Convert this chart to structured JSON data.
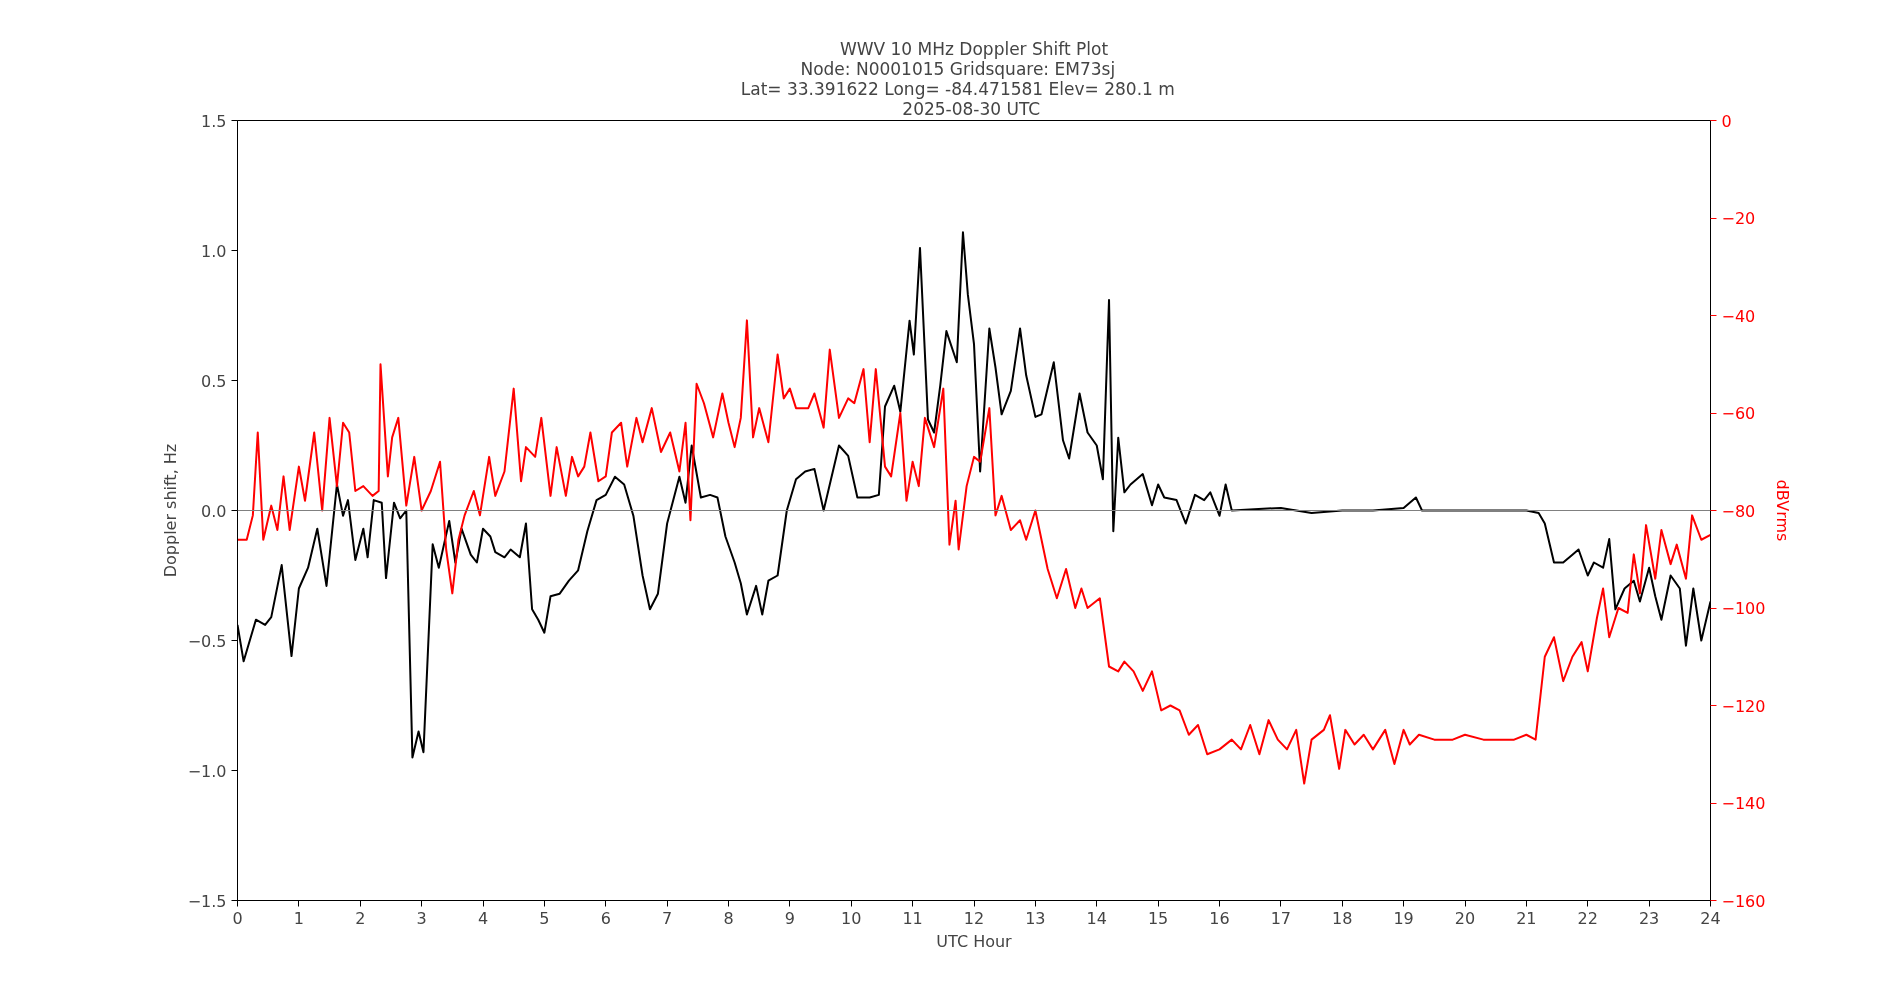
{
  "chart_data": {
    "type": "line",
    "title": "WWV 10 MHz Doppler Shift Plot\nNode:  N0001015     Gridsquare:  EM73sj\nLat= 33.391622    Long= -84.471581    Elev= 280.1 m\n2025-08-30  UTC",
    "xlabel": "UTC Hour",
    "ylabel": "Doppler shift, Hz",
    "y2label": "dBVrms",
    "xlim": [
      0,
      24
    ],
    "xticks": [
      0,
      1,
      2,
      3,
      4,
      5,
      6,
      7,
      8,
      9,
      10,
      11,
      12,
      13,
      14,
      15,
      16,
      17,
      18,
      19,
      20,
      21,
      22,
      23,
      24
    ],
    "ylim": [
      -1.5,
      1.5
    ],
    "yticks": [
      {
        "value": -1.5,
        "label": "−1.5"
      },
      {
        "value": -1.0,
        "label": "−1.0"
      },
      {
        "value": -0.5,
        "label": "−0.5"
      },
      {
        "value": 0,
        "label": "0.0"
      },
      {
        "value": 0.5,
        "label": "0.5"
      },
      {
        "value": 1.0,
        "label": "1.0"
      },
      1.5
    ],
    "y2lim": [
      -160,
      0
    ],
    "y2ticks": [
      {
        "value": -160,
        "label": "−160"
      },
      {
        "value": -140,
        "label": "−140"
      },
      {
        "value": -120,
        "label": "−120"
      },
      {
        "value": -100,
        "label": "−100"
      },
      {
        "value": -80,
        "label": "−80"
      },
      {
        "value": -60,
        "label": "−60"
      },
      {
        "value": -40,
        "label": "−40"
      },
      {
        "value": -20,
        "label": "−20"
      },
      0
    ],
    "ref_lines": [
      {
        "axis": "y",
        "value": 0,
        "color": "#808080"
      }
    ],
    "grid": false,
    "marker": "none",
    "line_style": "solid",
    "series": [
      {
        "color": "#000000",
        "x": [
          0.0,
          0.1,
          0.3,
          0.45,
          0.55,
          0.72,
          0.88,
          1.0,
          1.15,
          1.3,
          1.45,
          1.62,
          1.72,
          1.8,
          1.92,
          2.05,
          2.12,
          2.22,
          2.35,
          2.42,
          2.55,
          2.65,
          2.75,
          2.85,
          2.95,
          3.03,
          3.18,
          3.28,
          3.45,
          3.55,
          3.65,
          3.8,
          3.9,
          4.0,
          4.12,
          4.2,
          4.35,
          4.45,
          4.6,
          4.7,
          4.8,
          4.9,
          5.0,
          5.1,
          5.25,
          5.4,
          5.55,
          5.7,
          5.85,
          6.0,
          6.15,
          6.3,
          6.45,
          6.6,
          6.72,
          6.85,
          7.0,
          7.2,
          7.3,
          7.4,
          7.55,
          7.7,
          7.82,
          7.95,
          8.1,
          8.2,
          8.3,
          8.45,
          8.55,
          8.65,
          8.8,
          8.95,
          9.1,
          9.25,
          9.4,
          9.55,
          9.7,
          9.8,
          9.95,
          10.1,
          10.3,
          10.45,
          10.55,
          10.7,
          10.8,
          10.95,
          11.02,
          11.12,
          11.25,
          11.35,
          11.45,
          11.55,
          11.72,
          11.82,
          11.9,
          12.0,
          12.1,
          12.25,
          12.35,
          12.45,
          12.6,
          12.75,
          12.85,
          13.0,
          13.1,
          13.3,
          13.45,
          13.55,
          13.72,
          13.85,
          14.0,
          14.1,
          14.2,
          14.27,
          14.35,
          14.45,
          14.55,
          14.75,
          14.9,
          15.0,
          15.1,
          15.3,
          15.45,
          15.6,
          15.75,
          15.85,
          16.0,
          16.1,
          16.2,
          17.0,
          17.5,
          18.0,
          18.5,
          19.0,
          19.2,
          19.3,
          20.0,
          21.0,
          21.2,
          21.3,
          21.45,
          21.6,
          21.75,
          21.85,
          22.0,
          22.1,
          22.25,
          22.35,
          22.45,
          22.6,
          22.75,
          22.85,
          23.0,
          23.1,
          23.2,
          23.35,
          23.5,
          23.6,
          23.72,
          23.85,
          24.0
        ],
        "values": [
          -0.44,
          -0.58,
          -0.42,
          -0.44,
          -0.41,
          -0.21,
          -0.56,
          -0.3,
          -0.22,
          -0.07,
          -0.29,
          0.1,
          -0.02,
          0.04,
          -0.19,
          -0.07,
          -0.18,
          0.04,
          0.03,
          -0.26,
          0.03,
          -0.03,
          0.0,
          -0.95,
          -0.85,
          -0.93,
          -0.13,
          -0.22,
          -0.04,
          -0.2,
          -0.07,
          -0.17,
          -0.2,
          -0.07,
          -0.1,
          -0.16,
          -0.18,
          -0.15,
          -0.18,
          -0.05,
          -0.38,
          -0.42,
          -0.47,
          -0.33,
          -0.32,
          -0.27,
          -0.23,
          -0.08,
          0.04,
          0.06,
          0.13,
          0.1,
          -0.02,
          -0.25,
          -0.38,
          -0.32,
          -0.05,
          0.13,
          0.03,
          0.25,
          0.05,
          0.06,
          0.05,
          -0.1,
          -0.2,
          -0.28,
          -0.4,
          -0.29,
          -0.4,
          -0.27,
          -0.25,
          0.0,
          0.12,
          0.15,
          0.16,
          0.0,
          0.15,
          0.25,
          0.21,
          0.05,
          0.05,
          0.06,
          0.4,
          0.48,
          0.38,
          0.73,
          0.6,
          1.01,
          0.35,
          0.3,
          0.48,
          0.69,
          0.57,
          1.07,
          0.83,
          0.64,
          0.15,
          0.7,
          0.55,
          0.37,
          0.46,
          0.7,
          0.52,
          0.36,
          0.37,
          0.57,
          0.27,
          0.2,
          0.45,
          0.3,
          0.25,
          0.12,
          0.81,
          -0.08,
          0.28,
          0.07,
          0.1,
          0.14,
          0.02,
          0.1,
          0.05,
          0.04,
          -0.05,
          0.06,
          0.04,
          0.07,
          -0.02,
          0.1,
          0.0,
          0.01,
          -0.01,
          0.0,
          0.0,
          0.01,
          0.05,
          0.0,
          0.0,
          0.0,
          -0.01,
          -0.05,
          -0.2,
          -0.2,
          -0.17,
          -0.15,
          -0.25,
          -0.2,
          -0.22,
          -0.11,
          -0.38,
          -0.3,
          -0.27,
          -0.35,
          -0.22,
          -0.33,
          -0.42,
          -0.25,
          -0.3,
          -0.52,
          -0.3,
          -0.5,
          -0.35
        ]
      },
      {
        "color": "#ff0000",
        "axis": "y2",
        "x": [
          0.0,
          0.15,
          0.25,
          0.33,
          0.42,
          0.55,
          0.65,
          0.75,
          0.85,
          1.0,
          1.1,
          1.25,
          1.38,
          1.5,
          1.62,
          1.72,
          1.82,
          1.92,
          2.05,
          2.2,
          2.3,
          2.33,
          2.45,
          2.52,
          2.62,
          2.75,
          2.88,
          3.0,
          3.15,
          3.3,
          3.4,
          3.5,
          3.6,
          3.7,
          3.85,
          3.95,
          4.1,
          4.2,
          4.35,
          4.5,
          4.62,
          4.7,
          4.85,
          4.95,
          5.1,
          5.2,
          5.35,
          5.45,
          5.55,
          5.65,
          5.75,
          5.88,
          6.0,
          6.1,
          6.25,
          6.35,
          6.5,
          6.6,
          6.75,
          6.9,
          7.05,
          7.2,
          7.3,
          7.38,
          7.48,
          7.6,
          7.75,
          7.9,
          8.0,
          8.1,
          8.2,
          8.3,
          8.4,
          8.5,
          8.65,
          8.8,
          8.9,
          9.0,
          9.1,
          9.3,
          9.4,
          9.55,
          9.65,
          9.8,
          9.95,
          10.05,
          10.2,
          10.3,
          10.4,
          10.55,
          10.65,
          10.8,
          10.9,
          11.0,
          11.1,
          11.2,
          11.35,
          11.5,
          11.6,
          11.7,
          11.75,
          11.88,
          12.0,
          12.1,
          12.25,
          12.35,
          12.45,
          12.6,
          12.75,
          12.85,
          13.0,
          13.2,
          13.35,
          13.5,
          13.65,
          13.75,
          13.85,
          14.05,
          14.2,
          14.35,
          14.45,
          14.6,
          14.75,
          14.9,
          15.05,
          15.2,
          15.35,
          15.5,
          15.65,
          15.8,
          16.0,
          16.2,
          16.35,
          16.5,
          16.65,
          16.8,
          16.95,
          17.1,
          17.25,
          17.38,
          17.5,
          17.7,
          17.8,
          17.95,
          18.05,
          18.2,
          18.35,
          18.5,
          18.7,
          18.85,
          19.0,
          19.1,
          19.25,
          19.5,
          19.8,
          20.0,
          20.3,
          20.5,
          20.8,
          21.0,
          21.15,
          21.3,
          21.45,
          21.6,
          21.75,
          21.9,
          22.0,
          22.15,
          22.25,
          22.35,
          22.5,
          22.65,
          22.75,
          22.85,
          22.95,
          23.1,
          23.2,
          23.35,
          23.45,
          23.6,
          23.7,
          23.85,
          24.0
        ],
        "values": [
          -86,
          -86,
          -81,
          -64,
          -86,
          -79,
          -84,
          -73,
          -84,
          -71,
          -78,
          -64,
          -80,
          -61,
          -75,
          -62,
          -64,
          -76,
          -75,
          -77,
          -76,
          -50,
          -73,
          -65,
          -61,
          -79,
          -69,
          -80,
          -76,
          -70,
          -88,
          -97,
          -86,
          -81,
          -76,
          -81,
          -69,
          -77,
          -72,
          -55,
          -74,
          -67,
          -69,
          -61,
          -77,
          -67,
          -77,
          -69,
          -73,
          -71,
          -64,
          -74,
          -73,
          -64,
          -62,
          -71,
          -61,
          -66,
          -59,
          -68,
          -64,
          -72,
          -62,
          -82,
          -54,
          -58,
          -65,
          -56,
          -62,
          -67,
          -61,
          -41,
          -65,
          -59,
          -66,
          -48,
          -57,
          -55,
          -59,
          -59,
          -56,
          -63,
          -47,
          -61,
          -57,
          -58,
          -51,
          -66,
          -51,
          -71,
          -73,
          -60,
          -78,
          -70,
          -75,
          -61,
          -67,
          -55,
          -87,
          -78,
          -88,
          -75,
          -69,
          -70,
          -59,
          -81,
          -77,
          -84,
          -82,
          -86,
          -80,
          -92,
          -98,
          -92,
          -100,
          -96,
          -100,
          -98,
          -112,
          -113,
          -111,
          -113,
          -117,
          -113,
          -121,
          -120,
          -121,
          -126,
          -124,
          -130,
          -129,
          -127,
          -129,
          -124,
          -130,
          -123,
          -127,
          -129,
          -125,
          -136,
          -127,
          -125,
          -122,
          -133,
          -125,
          -128,
          -126,
          -129,
          -125,
          -132,
          -125,
          -128,
          -126,
          -127,
          -127,
          -126,
          -127,
          -127,
          -127,
          -126,
          -127,
          -110,
          -106,
          -115,
          -110,
          -107,
          -113,
          -102,
          -96,
          -106,
          -100,
          -101,
          -89,
          -97,
          -83,
          -94,
          -84,
          -91,
          -87,
          -94,
          -81,
          -86,
          -85
        ]
      }
    ]
  }
}
